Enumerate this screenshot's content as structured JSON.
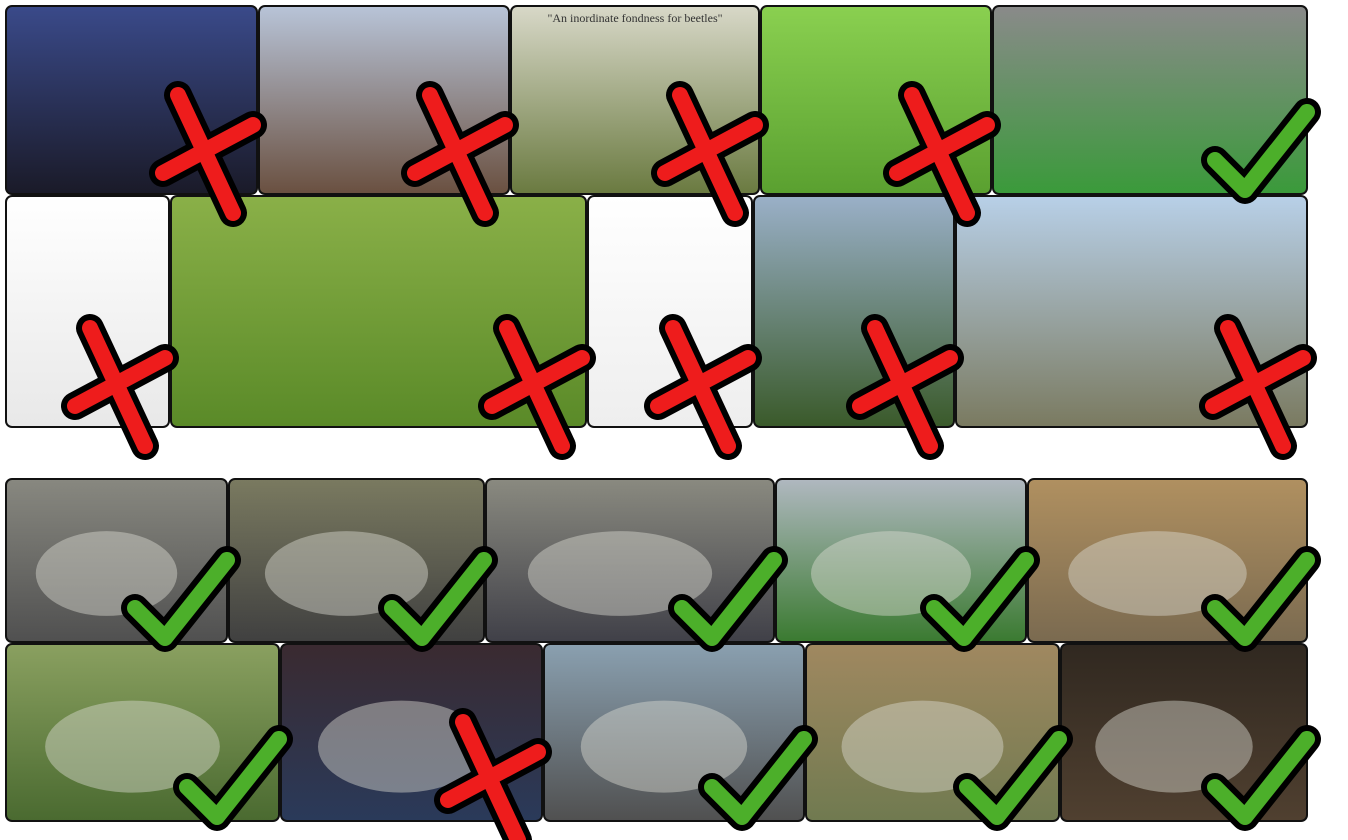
{
  "mark_colors": {
    "correct": "#4caf2a",
    "wrong": "#ee1c1c",
    "outline": "#000000"
  },
  "panels": [
    {
      "rows": [
        {
          "tiles": [
            {
              "correct": false
            },
            {
              "correct": false
            },
            {
              "correct": false,
              "sign": "\"An inordinate fondness for beetles\""
            },
            {
              "correct": false
            },
            {
              "correct": true
            }
          ]
        },
        {
          "tiles": [
            {
              "correct": false
            },
            {
              "correct": false
            },
            {
              "correct": false
            },
            {
              "correct": false
            },
            {
              "correct": false
            }
          ]
        }
      ]
    },
    {
      "rows": [
        {
          "tiles": [
            {
              "correct": true
            },
            {
              "correct": true
            },
            {
              "correct": true
            },
            {
              "correct": true
            },
            {
              "correct": true
            }
          ]
        },
        {
          "tiles": [
            {
              "correct": true
            },
            {
              "correct": false
            },
            {
              "correct": true
            },
            {
              "correct": true
            },
            {
              "correct": true
            }
          ]
        }
      ]
    }
  ]
}
